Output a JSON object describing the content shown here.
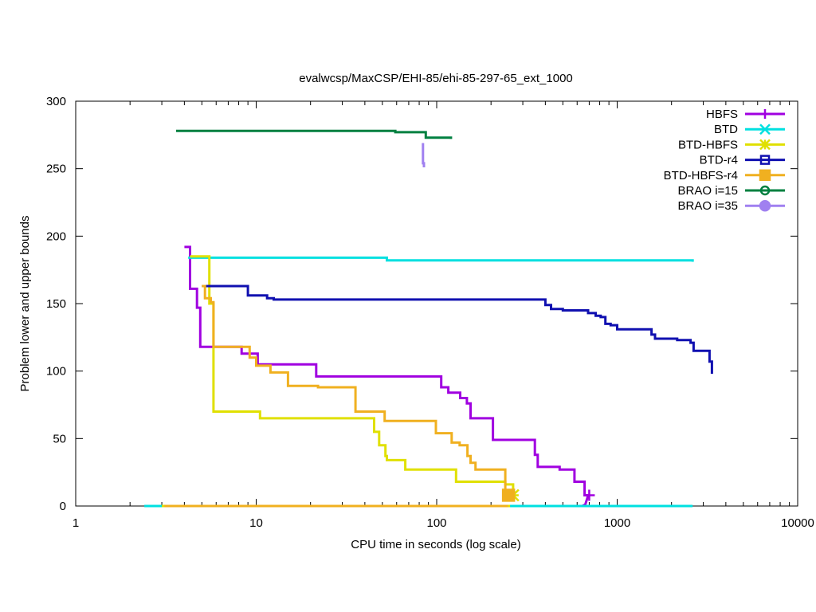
{
  "chart_data": {
    "type": "line",
    "title": "evalwcsp/MaxCSP/EHI-85/ehi-85-297-65_ext_1000",
    "xlabel": "CPU time in seconds (log scale)",
    "ylabel": "Problem lower and upper bounds",
    "xscale": "log",
    "xlim": [
      1,
      10000
    ],
    "ylim": [
      0,
      300
    ],
    "x_ticks": [
      1,
      10,
      100,
      1000,
      10000
    ],
    "x_tick_labels": [
      "1",
      "10",
      "100",
      "1000",
      "10000"
    ],
    "y_ticks": [
      0,
      50,
      100,
      150,
      200,
      250,
      300
    ],
    "y_tick_labels": [
      "0",
      "50",
      "100",
      "150",
      "200",
      "250",
      "300"
    ],
    "legend_position": "top-right",
    "series": [
      {
        "name": "HBFS",
        "color": "#a000e0",
        "marker": "plus",
        "upper": [
          [
            4.0,
            192
          ],
          [
            4.3,
            192
          ],
          [
            4.3,
            161
          ],
          [
            4.7,
            161
          ],
          [
            4.7,
            147
          ],
          [
            4.9,
            147
          ],
          [
            4.9,
            118
          ],
          [
            8.3,
            118
          ],
          [
            8.3,
            113
          ],
          [
            10.2,
            113
          ],
          [
            10.2,
            105
          ],
          [
            21.5,
            105
          ],
          [
            21.5,
            96
          ],
          [
            106,
            96
          ],
          [
            106,
            88
          ],
          [
            116,
            88
          ],
          [
            116,
            84
          ],
          [
            135,
            84
          ],
          [
            135,
            80
          ],
          [
            147,
            80
          ],
          [
            147,
            76
          ],
          [
            154,
            76
          ],
          [
            154,
            65
          ],
          [
            205,
            65
          ],
          [
            205,
            49
          ],
          [
            350,
            49
          ],
          [
            350,
            38
          ],
          [
            363,
            38
          ],
          [
            363,
            29
          ],
          [
            480,
            29
          ],
          [
            480,
            27
          ],
          [
            580,
            27
          ],
          [
            580,
            18
          ],
          [
            660,
            18
          ],
          [
            660,
            8
          ],
          [
            700,
            8
          ]
        ],
        "lower": [
          [
            3.2,
            0
          ],
          [
            640,
            0
          ],
          [
            665,
            1
          ],
          [
            680,
            5
          ],
          [
            690,
            8
          ]
        ],
        "marker_points": [
          [
            700,
            8
          ]
        ]
      },
      {
        "name": "BTD",
        "color": "#00e0e0",
        "marker": "cross",
        "upper": [
          [
            4.2,
            184
          ],
          [
            53,
            184
          ],
          [
            53,
            182
          ],
          [
            2620,
            182
          ],
          [
            2620,
            181
          ]
        ],
        "lower": [
          [
            2.4,
            0
          ],
          [
            2620,
            0
          ]
        ],
        "marker_points": []
      },
      {
        "name": "BTD-HBFS",
        "color": "#e0e000",
        "marker": "asterisk",
        "upper": [
          [
            4.3,
            185
          ],
          [
            5.5,
            185
          ],
          [
            5.5,
            150
          ],
          [
            5.8,
            150
          ],
          [
            5.8,
            70
          ],
          [
            10.5,
            70
          ],
          [
            10.5,
            65
          ],
          [
            45,
            65
          ],
          [
            45,
            55
          ],
          [
            48,
            55
          ],
          [
            48,
            45
          ],
          [
            52,
            45
          ],
          [
            52,
            37
          ],
          [
            53,
            37
          ],
          [
            53,
            34
          ],
          [
            67,
            34
          ],
          [
            67,
            27
          ],
          [
            128,
            27
          ],
          [
            128,
            18
          ],
          [
            240,
            18
          ],
          [
            240,
            16
          ],
          [
            265,
            16
          ],
          [
            265,
            10
          ],
          [
            275,
            10
          ]
        ],
        "lower": [
          [
            3.0,
            0
          ],
          [
            255,
            0
          ]
        ],
        "marker_points": [
          [
            265,
            8
          ]
        ]
      },
      {
        "name": "BTD-r4",
        "color": "#1010b0",
        "marker": "square",
        "upper": [
          [
            5.0,
            163
          ],
          [
            9.0,
            163
          ],
          [
            9.0,
            156
          ],
          [
            11.5,
            156
          ],
          [
            11.5,
            154
          ],
          [
            12.5,
            154
          ],
          [
            12.5,
            153
          ],
          [
            21.0,
            153
          ],
          [
            21.0,
            153
          ],
          [
            400,
            153
          ],
          [
            400,
            149
          ],
          [
            430,
            149
          ],
          [
            430,
            146
          ],
          [
            500,
            146
          ],
          [
            500,
            145
          ],
          [
            690,
            145
          ],
          [
            690,
            143
          ],
          [
            760,
            143
          ],
          [
            760,
            141
          ],
          [
            810,
            141
          ],
          [
            810,
            140
          ],
          [
            860,
            140
          ],
          [
            860,
            135
          ],
          [
            920,
            135
          ],
          [
            920,
            134
          ],
          [
            1000,
            134
          ],
          [
            1000,
            131
          ],
          [
            1550,
            131
          ],
          [
            1550,
            127
          ],
          [
            1620,
            127
          ],
          [
            1620,
            124
          ],
          [
            2150,
            124
          ],
          [
            2150,
            123
          ],
          [
            2550,
            123
          ],
          [
            2550,
            121
          ],
          [
            2650,
            121
          ],
          [
            2650,
            115
          ],
          [
            3250,
            115
          ],
          [
            3250,
            107
          ],
          [
            3350,
            107
          ],
          [
            3350,
            98
          ]
        ],
        "lower": [],
        "marker_points": []
      },
      {
        "name": "BTD-HBFS-r4",
        "color": "#f0b020",
        "marker": "filled-square",
        "upper": [
          [
            5.0,
            163
          ],
          [
            5.2,
            163
          ],
          [
            5.2,
            154
          ],
          [
            5.6,
            154
          ],
          [
            5.6,
            151
          ],
          [
            5.8,
            151
          ],
          [
            5.8,
            118
          ],
          [
            9.2,
            118
          ],
          [
            9.2,
            110
          ],
          [
            10.0,
            110
          ],
          [
            10.0,
            104
          ],
          [
            12.0,
            104
          ],
          [
            12.0,
            99
          ],
          [
            15.0,
            99
          ],
          [
            15.0,
            89
          ],
          [
            22.0,
            89
          ],
          [
            22.0,
            88
          ],
          [
            35.5,
            88
          ],
          [
            35.5,
            70
          ],
          [
            51.5,
            70
          ],
          [
            51.5,
            63
          ],
          [
            99,
            63
          ],
          [
            99,
            54
          ],
          [
            121,
            54
          ],
          [
            121,
            47
          ],
          [
            134,
            47
          ],
          [
            134,
            45
          ],
          [
            148,
            45
          ],
          [
            148,
            37
          ],
          [
            154,
            37
          ],
          [
            154,
            32
          ],
          [
            164,
            32
          ],
          [
            164,
            27
          ],
          [
            240,
            27
          ],
          [
            240,
            9
          ],
          [
            260,
            9
          ]
        ],
        "lower": [
          [
            3.1,
            0
          ],
          [
            248,
            0
          ]
        ],
        "marker_points": [
          [
            250,
            8
          ]
        ]
      },
      {
        "name": "BRAO i=15",
        "color": "#008040",
        "marker": "circle",
        "upper": [
          [
            3.6,
            278
          ],
          [
            59,
            278
          ],
          [
            59,
            277
          ],
          [
            87,
            277
          ],
          [
            87,
            273
          ],
          [
            120,
            273
          ],
          [
            120,
            272
          ]
        ],
        "lower": [],
        "marker_points": []
      },
      {
        "name": "BRAO i=35",
        "color": "#a080f0",
        "marker": "filled-circle",
        "upper": [
          [
            84,
            269
          ],
          [
            84,
            254
          ],
          [
            85,
            254
          ],
          [
            85,
            251
          ]
        ],
        "lower": [],
        "marker_points": []
      }
    ]
  }
}
